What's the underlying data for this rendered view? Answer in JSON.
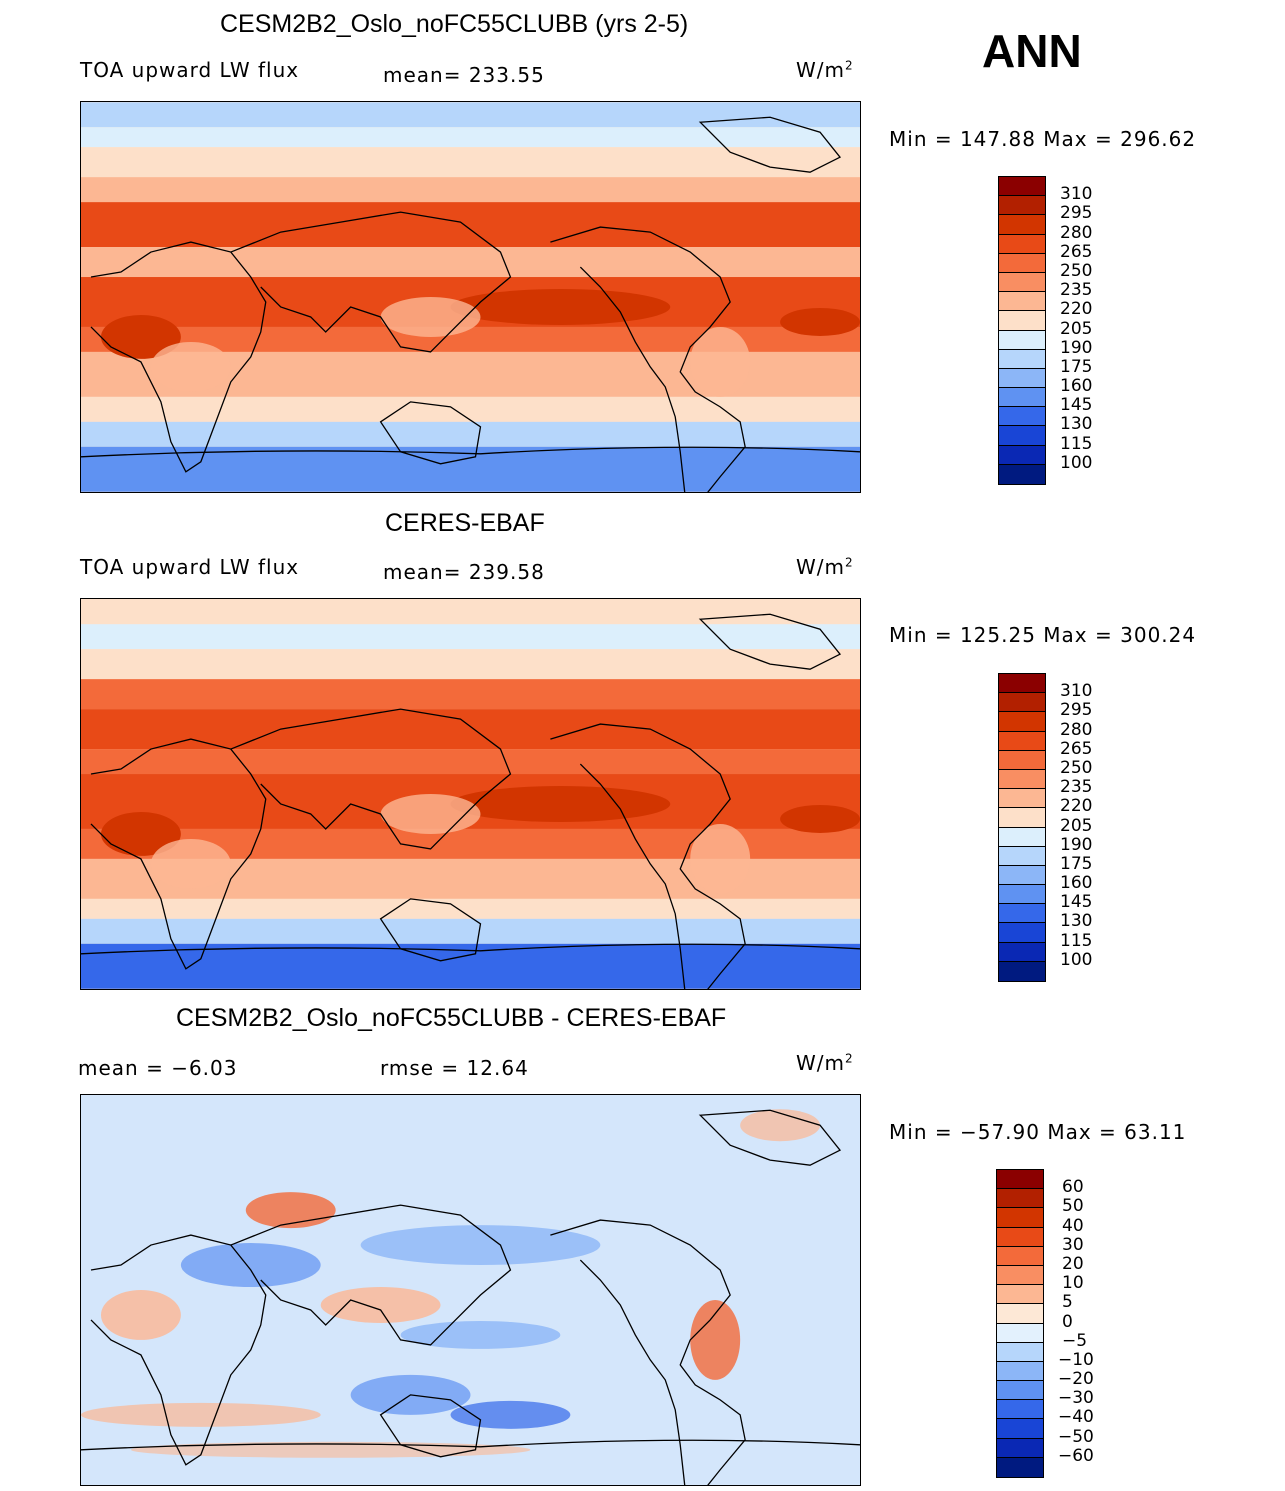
{
  "season": "ANN",
  "panels": [
    {
      "title": "CESM2B2_Oslo_noFC55CLUBB (yrs 2-5)",
      "variable": "TOA upward LW flux",
      "stat1": "mean=  233.55",
      "stat2": "",
      "units": "W/m",
      "units_sup": "2",
      "minmax": "Min  =  147.88  Max  =  296.62",
      "colorbar": {
        "labels": [
          "310",
          "295",
          "280",
          "265",
          "250",
          "235",
          "220",
          "205",
          "190",
          "175",
          "160",
          "145",
          "130",
          "115",
          "100"
        ],
        "colors": [
          "#8b0000",
          "#b22000",
          "#d23500",
          "#e84a17",
          "#f36a3a",
          "#f98e62",
          "#fcb793",
          "#fde0c9",
          "#dceffc",
          "#b6d6fb",
          "#8cb6f7",
          "#5f92f2",
          "#3568ea",
          "#1945d6",
          "#0a28b4",
          "#001a80"
        ]
      },
      "map_type": "model"
    },
    {
      "title": "CERES-EBAF",
      "variable": "TOA upward LW flux",
      "stat1": "mean=  239.58",
      "stat2": "",
      "units": "W/m",
      "units_sup": "2",
      "minmax": "Min  =  125.25  Max  =  300.24",
      "colorbar": {
        "labels": [
          "310",
          "295",
          "280",
          "265",
          "250",
          "235",
          "220",
          "205",
          "190",
          "175",
          "160",
          "145",
          "130",
          "115",
          "100"
        ],
        "colors": [
          "#8b0000",
          "#b22000",
          "#d23500",
          "#e84a17",
          "#f36a3a",
          "#f98e62",
          "#fcb793",
          "#fde0c9",
          "#dceffc",
          "#b6d6fb",
          "#8cb6f7",
          "#5f92f2",
          "#3568ea",
          "#1945d6",
          "#0a28b4",
          "#001a80"
        ]
      },
      "map_type": "obs"
    },
    {
      "title": "CESM2B2_Oslo_noFC55CLUBB - CERES-EBAF",
      "variable": "mean  =    −6.03",
      "stat1": "rmse  =    12.64",
      "stat2": "",
      "units": "W/m",
      "units_sup": "2",
      "minmax": "Min  =  −57.90  Max  =    63.11",
      "colorbar": {
        "labels": [
          "60",
          "50",
          "40",
          "30",
          "20",
          "10",
          "5",
          "0",
          "−5",
          "−10",
          "−20",
          "−30",
          "−40",
          "−50",
          "−60"
        ],
        "colors": [
          "#8b0000",
          "#b22000",
          "#d23500",
          "#e84a17",
          "#f36a3a",
          "#f98e62",
          "#fcb793",
          "#fde8d6",
          "#e3f1fd",
          "#b6d6fb",
          "#8cb6f7",
          "#5f92f2",
          "#3568ea",
          "#1945d6",
          "#0a28b4",
          "#001a80"
        ]
      },
      "map_type": "diff"
    }
  ]
}
